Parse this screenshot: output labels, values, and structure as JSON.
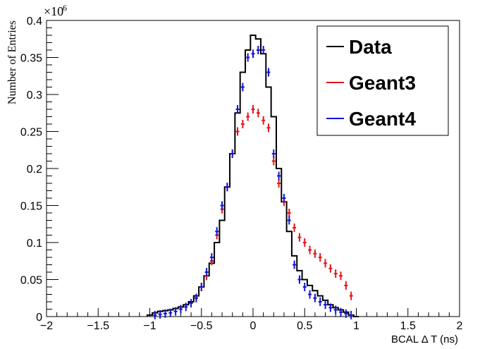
{
  "chart_data": {
    "type": "line",
    "xlabel": "BCAL Δ T (ns)",
    "ylabel": "Number of Entries",
    "y_multiplier_label": "×10",
    "y_multiplier_exponent": "6",
    "xlim": [
      -2,
      2
    ],
    "ylim": [
      0,
      0.4
    ],
    "x_ticks": [
      -2,
      -1.5,
      -1,
      -0.5,
      0,
      0.5,
      1,
      1.5,
      2
    ],
    "x_tick_labels": [
      "−2",
      "−1.5",
      "−1",
      "−0.5",
      "0",
      "0.5",
      "1",
      "1.5",
      "2"
    ],
    "y_ticks": [
      0,
      0.05,
      0.1,
      0.15,
      0.2,
      0.25,
      0.3,
      0.35,
      0.4
    ],
    "y_tick_labels": [
      "0",
      "0.05",
      "0.1",
      "0.15",
      "0.2",
      "0.25",
      "0.3",
      "0.35",
      "0.4"
    ],
    "legend_position": "top-right",
    "series": [
      {
        "name": "Data",
        "color": "#000000",
        "style": "step",
        "x": [
          -1.0,
          -0.95,
          -0.9,
          -0.85,
          -0.8,
          -0.75,
          -0.7,
          -0.65,
          -0.6,
          -0.55,
          -0.5,
          -0.45,
          -0.4,
          -0.35,
          -0.3,
          -0.25,
          -0.2,
          -0.15,
          -0.1,
          -0.05,
          0.0,
          0.05,
          0.1,
          0.15,
          0.2,
          0.25,
          0.3,
          0.35,
          0.4,
          0.45,
          0.5,
          0.55,
          0.6,
          0.65,
          0.7,
          0.75,
          0.8,
          0.85,
          0.9,
          0.95,
          1.0
        ],
        "y": [
          0.002,
          0.005,
          0.007,
          0.008,
          0.009,
          0.011,
          0.013,
          0.016,
          0.02,
          0.028,
          0.04,
          0.055,
          0.072,
          0.1,
          0.13,
          0.175,
          0.22,
          0.275,
          0.33,
          0.36,
          0.38,
          0.375,
          0.355,
          0.31,
          0.27,
          0.2,
          0.155,
          0.115,
          0.082,
          0.062,
          0.05,
          0.042,
          0.035,
          0.028,
          0.022,
          0.016,
          0.012,
          0.009,
          0.006,
          0.002,
          0.0
        ]
      },
      {
        "name": "Geant3",
        "color": "#e8131a",
        "style": "errorbar",
        "x": [
          -0.55,
          -0.5,
          -0.45,
          -0.4,
          -0.35,
          -0.3,
          -0.25,
          -0.2,
          -0.15,
          -0.1,
          -0.05,
          0.0,
          0.05,
          0.1,
          0.15,
          0.2,
          0.25,
          0.3,
          0.35,
          0.4,
          0.45,
          0.5,
          0.55,
          0.6,
          0.65,
          0.7,
          0.75,
          0.8,
          0.85,
          0.9,
          0.95
        ],
        "y": [
          0.025,
          0.04,
          0.055,
          0.075,
          0.11,
          0.145,
          0.175,
          0.22,
          0.25,
          0.26,
          0.27,
          0.28,
          0.275,
          0.265,
          0.255,
          0.21,
          0.18,
          0.155,
          0.14,
          0.12,
          0.107,
          0.1,
          0.09,
          0.085,
          0.08,
          0.072,
          0.065,
          0.058,
          0.055,
          0.042,
          0.028
        ]
      },
      {
        "name": "Geant4",
        "color": "#1414d2",
        "style": "errorbar",
        "x": [
          -0.95,
          -0.9,
          -0.85,
          -0.8,
          -0.75,
          -0.7,
          -0.65,
          -0.6,
          -0.55,
          -0.5,
          -0.45,
          -0.4,
          -0.35,
          -0.3,
          -0.25,
          -0.2,
          -0.15,
          -0.1,
          -0.05,
          0.0,
          0.05,
          0.1,
          0.15,
          0.2,
          0.25,
          0.3,
          0.35,
          0.4,
          0.45,
          0.5,
          0.55,
          0.6,
          0.65,
          0.7,
          0.75,
          0.8,
          0.85,
          0.9,
          0.95
        ],
        "y": [
          0.002,
          0.003,
          0.004,
          0.005,
          0.007,
          0.01,
          0.013,
          0.018,
          0.025,
          0.04,
          0.06,
          0.08,
          0.115,
          0.15,
          0.175,
          0.22,
          0.28,
          0.31,
          0.35,
          0.355,
          0.36,
          0.36,
          0.33,
          0.22,
          0.19,
          0.16,
          0.13,
          0.07,
          0.05,
          0.04,
          0.03,
          0.025,
          0.02,
          0.016,
          0.012,
          0.009,
          0.006,
          0.004,
          0.002
        ]
      }
    ]
  }
}
